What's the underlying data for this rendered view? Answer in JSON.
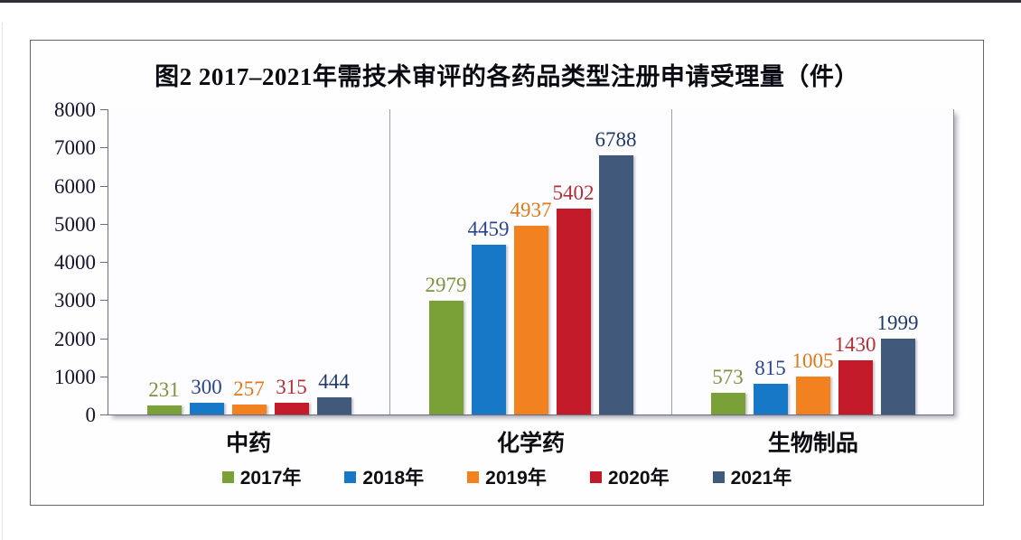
{
  "page": {
    "top_border_color": "#2f2f36"
  },
  "chart_data": {
    "type": "bar",
    "title": "图2 2017–2021年需技术审评的各药品类型注册申请受理量（件）",
    "categories": [
      "中药",
      "化学药",
      "生物制品"
    ],
    "series": [
      {
        "name": "2017年",
        "color": "#7AA038",
        "label_color": "#7D9342",
        "values": [
          231,
          2979,
          573
        ]
      },
      {
        "name": "2018年",
        "color": "#1878C8",
        "label_color": "#2B4490",
        "values": [
          300,
          4459,
          815
        ]
      },
      {
        "name": "2019年",
        "color": "#F28220",
        "label_color": "#D97B20",
        "values": [
          257,
          4937,
          1005
        ]
      },
      {
        "name": "2020年",
        "color": "#C21A28",
        "label_color": "#B03138",
        "values": [
          315,
          5402,
          1430
        ]
      },
      {
        "name": "2021年",
        "color": "#41597B",
        "label_color": "#203A66",
        "values": [
          444,
          6788,
          1999
        ]
      }
    ],
    "ylim": [
      0,
      8000
    ],
    "yticks": [
      0,
      1000,
      2000,
      3000,
      4000,
      5000,
      6000,
      7000,
      8000
    ],
    "grid": false,
    "data_labels": true,
    "legend_position": "bottom"
  }
}
